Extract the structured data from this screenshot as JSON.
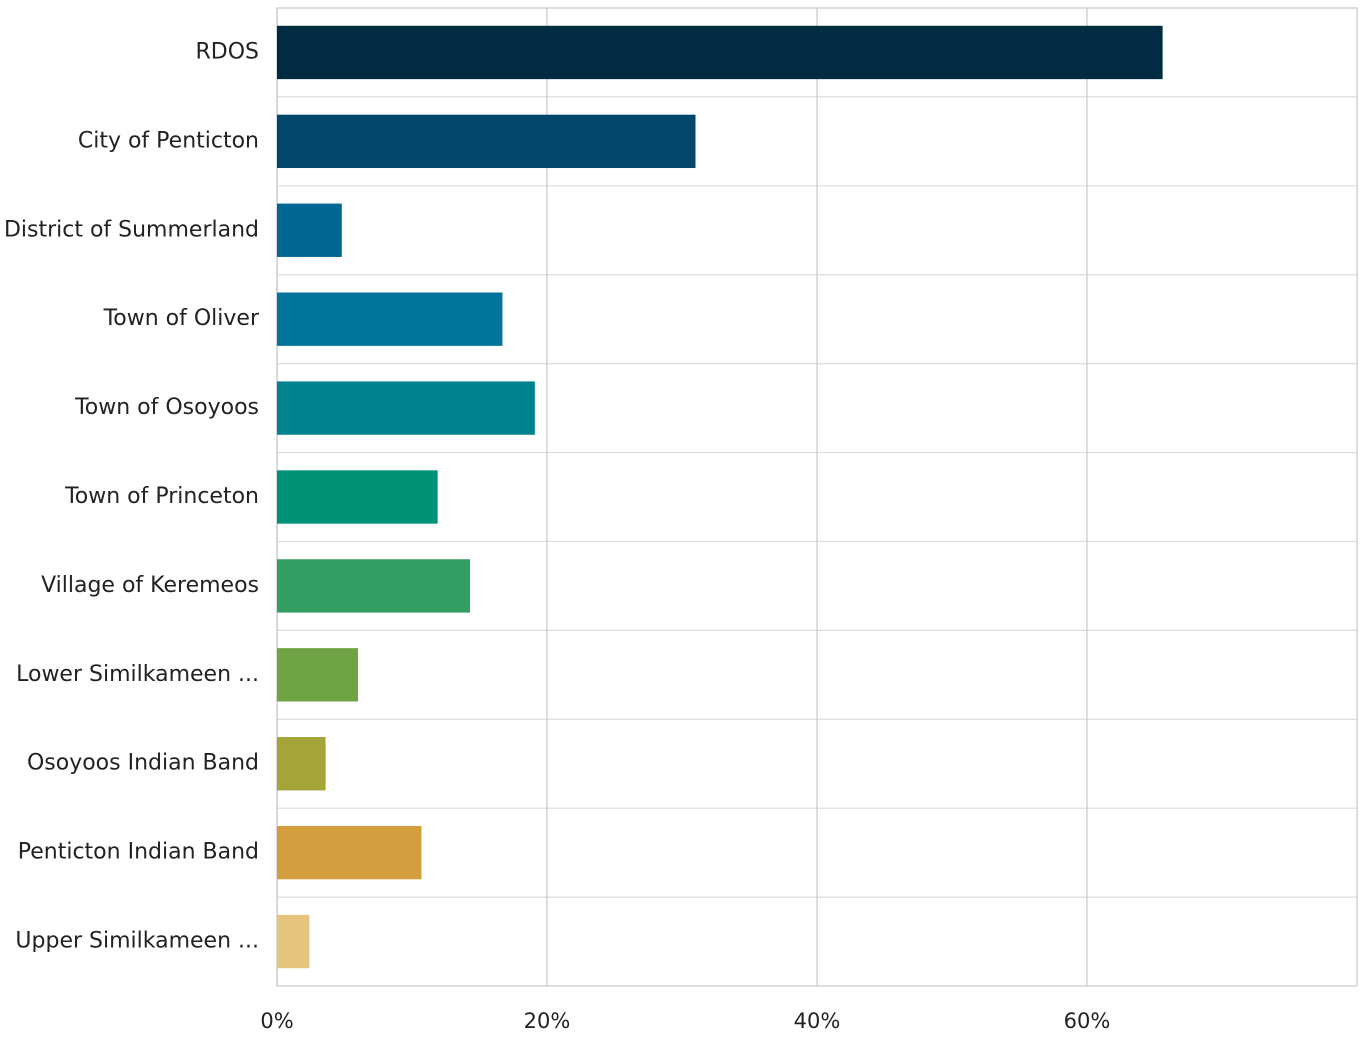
{
  "chart_data": {
    "type": "bar",
    "orientation": "horizontal",
    "categories": [
      "RDOS",
      "City of Penticton",
      "District of Summerland",
      "Town of Oliver",
      "Town of Osoyoos",
      "Town of Princeton",
      "Village of Keremeos",
      "Lower Similkameen ...",
      "Osoyoos Indian Band",
      "Penticton Indian Band",
      "Upper Similkameen ..."
    ],
    "values": [
      65.6,
      31.0,
      4.8,
      16.7,
      19.1,
      11.9,
      14.3,
      6.0,
      3.6,
      10.7,
      2.4
    ],
    "colors": [
      "#002b40",
      "#00476b",
      "#006694",
      "#00749a",
      "#00838f",
      "#009179",
      "#359e63",
      "#6fa344",
      "#a4a438",
      "#d29e3e",
      "#e5c47e"
    ],
    "xlim": [
      0,
      80
    ],
    "x_ticks": [
      0,
      20,
      40,
      60
    ],
    "x_tick_labels": [
      "0%",
      "20%",
      "40%",
      "60%"
    ],
    "grid": true,
    "legend": "none"
  }
}
